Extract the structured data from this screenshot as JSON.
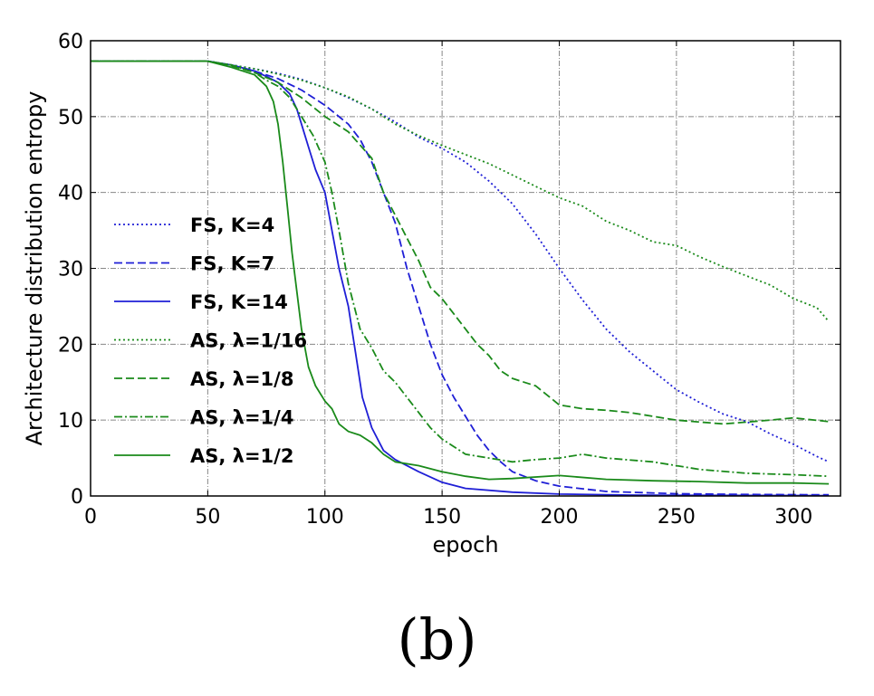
{
  "panel_label": "(b)",
  "chart_data": {
    "type": "line",
    "title": "",
    "xlabel": "epoch",
    "ylabel": "Architecture distribution entropy",
    "xlim": [
      0,
      320
    ],
    "ylim": [
      0,
      60
    ],
    "xticks": [
      0,
      50,
      100,
      150,
      200,
      250,
      300
    ],
    "yticks": [
      0,
      10,
      20,
      30,
      40,
      50,
      60
    ],
    "grid": true,
    "legend_position": "center-left",
    "series": [
      {
        "name": "FS, K=4",
        "color": "#1f1fd6",
        "style": "dotted",
        "x": [
          0,
          50,
          60,
          70,
          80,
          90,
          100,
          110,
          120,
          130,
          140,
          150,
          160,
          170,
          180,
          190,
          200,
          210,
          220,
          230,
          240,
          250,
          260,
          270,
          280,
          290,
          300,
          310,
          315
        ],
        "y": [
          57.3,
          57.3,
          56.8,
          56.3,
          55.7,
          54.9,
          53.8,
          52.5,
          51.0,
          49.3,
          47.3,
          45.8,
          44.0,
          41.5,
          38.5,
          34.5,
          30.0,
          25.8,
          22.0,
          19.0,
          16.5,
          14.0,
          12.3,
          10.8,
          9.8,
          8.2,
          6.8,
          5.2,
          4.5
        ]
      },
      {
        "name": "FS, K=7",
        "color": "#1f1fd6",
        "style": "dashed",
        "x": [
          0,
          50,
          60,
          70,
          80,
          90,
          100,
          110,
          115,
          120,
          125,
          130,
          135,
          140,
          145,
          150,
          155,
          160,
          165,
          170,
          175,
          180,
          190,
          200,
          220,
          250,
          280,
          315
        ],
        "y": [
          57.3,
          57.3,
          56.8,
          56.0,
          55.0,
          53.5,
          51.5,
          49.0,
          47.0,
          44.0,
          40.0,
          36.0,
          30.0,
          25.0,
          20.0,
          16.0,
          13.0,
          10.5,
          8.0,
          6.0,
          4.5,
          3.2,
          2.0,
          1.3,
          0.6,
          0.3,
          0.2,
          0.15
        ]
      },
      {
        "name": "FS, K=14",
        "color": "#1f1fd6",
        "style": "solid",
        "x": [
          0,
          50,
          60,
          70,
          75,
          80,
          85,
          88,
          90,
          93,
          96,
          100,
          103,
          106,
          110,
          113,
          116,
          120,
          125,
          130,
          140,
          150,
          160,
          180,
          200,
          230,
          260,
          315
        ],
        "y": [
          57.3,
          57.3,
          56.8,
          56.0,
          55.3,
          54.5,
          53.0,
          51.0,
          49.0,
          46.0,
          43.0,
          40.0,
          35.0,
          30.0,
          25.0,
          19.0,
          13.0,
          9.0,
          6.0,
          4.8,
          3.2,
          1.8,
          1.0,
          0.5,
          0.25,
          0.12,
          0.08,
          0.05
        ]
      },
      {
        "name": "AS, λ=1/16",
        "color": "#1a8a1a",
        "style": "dotted",
        "x": [
          0,
          50,
          60,
          70,
          80,
          90,
          100,
          110,
          120,
          130,
          140,
          150,
          160,
          170,
          180,
          190,
          200,
          210,
          220,
          230,
          240,
          250,
          260,
          270,
          280,
          290,
          300,
          310,
          315
        ],
        "y": [
          57.3,
          57.3,
          56.8,
          56.3,
          55.6,
          54.8,
          53.8,
          52.6,
          51.0,
          49.0,
          47.5,
          46.2,
          45.0,
          43.8,
          42.3,
          40.8,
          39.3,
          38.2,
          36.2,
          35.0,
          33.5,
          33.0,
          31.5,
          30.2,
          29.0,
          27.8,
          26.0,
          24.8,
          23.0
        ]
      },
      {
        "name": "AS, λ=1/8",
        "color": "#1a8a1a",
        "style": "dashed",
        "x": [
          0,
          50,
          60,
          70,
          80,
          90,
          100,
          110,
          120,
          125,
          130,
          135,
          140,
          145,
          150,
          155,
          160,
          165,
          170,
          175,
          180,
          185,
          190,
          200,
          210,
          220,
          230,
          250,
          270,
          290,
          300,
          315
        ],
        "y": [
          57.3,
          57.3,
          56.7,
          55.8,
          54.5,
          52.5,
          50.0,
          48.0,
          44.5,
          40.0,
          37.0,
          34.0,
          31.0,
          27.5,
          26.0,
          24.0,
          22.0,
          20.0,
          18.5,
          16.5,
          15.5,
          15.0,
          14.5,
          12.0,
          11.5,
          11.3,
          11.0,
          10.0,
          9.5,
          10.0,
          10.3,
          9.8
        ]
      },
      {
        "name": "AS, λ=1/4",
        "color": "#1a8a1a",
        "style": "dashdot",
        "x": [
          0,
          50,
          60,
          70,
          75,
          80,
          85,
          90,
          95,
          100,
          103,
          106,
          110,
          115,
          120,
          125,
          130,
          135,
          140,
          145,
          150,
          155,
          160,
          170,
          180,
          190,
          200,
          210,
          220,
          240,
          260,
          280,
          300,
          315
        ],
        "y": [
          57.3,
          57.3,
          56.8,
          55.8,
          54.8,
          54.0,
          52.5,
          50.0,
          47.5,
          44.0,
          40.0,
          35.0,
          28.0,
          22.0,
          19.5,
          16.5,
          15.0,
          13.0,
          11.0,
          9.0,
          7.5,
          6.5,
          5.5,
          5.0,
          4.5,
          4.8,
          5.0,
          5.5,
          5.0,
          4.5,
          3.5,
          3.0,
          2.8,
          2.6
        ]
      },
      {
        "name": "AS, λ=1/2",
        "color": "#1a8a1a",
        "style": "solid",
        "x": [
          0,
          50,
          60,
          70,
          75,
          78,
          80,
          82,
          84,
          86,
          88,
          90,
          93,
          96,
          100,
          103,
          106,
          110,
          115,
          120,
          125,
          130,
          140,
          150,
          160,
          170,
          180,
          200,
          220,
          240,
          260,
          280,
          300,
          315
        ],
        "y": [
          57.3,
          57.3,
          56.5,
          55.5,
          54.0,
          52.0,
          49.0,
          44.0,
          38.0,
          32.0,
          27.0,
          22.0,
          17.0,
          14.5,
          12.5,
          11.5,
          9.5,
          8.5,
          8.0,
          7.0,
          5.5,
          4.5,
          4.0,
          3.2,
          2.6,
          2.2,
          2.3,
          2.7,
          2.2,
          2.0,
          1.9,
          1.7,
          1.7,
          1.6
        ]
      }
    ]
  }
}
